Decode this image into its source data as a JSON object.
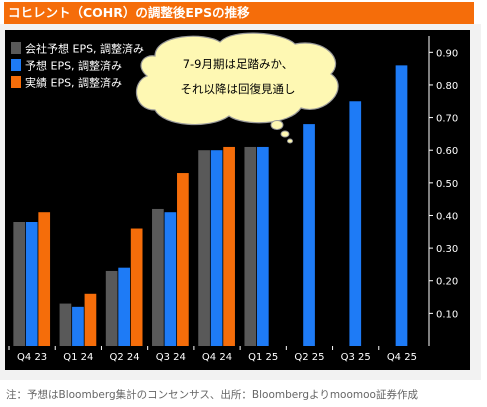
{
  "title": "コヒレント（COHR）の調整後EPSの推移",
  "footnote": "注：予想はBloomberg集計のコンセンサス、出所：Bloombergよりmoomoo証券作成",
  "callout": {
    "line1": "7-9月期は足踏みか、",
    "line2": "それ以降は回復見通し"
  },
  "colors": {
    "company": "#595959",
    "consensus": "#1e7bf6",
    "actual": "#f56d0a",
    "header": "#f56d0a",
    "background": "#000000"
  },
  "chart_data": {
    "type": "bar",
    "title": "コヒレント（COHR）の調整後EPSの推移",
    "categories": [
      "Q4 23",
      "Q1 24",
      "Q2 24",
      "Q3 24",
      "Q4 24",
      "Q1 25",
      "Q2 25",
      "Q3 25",
      "Q4 25"
    ],
    "series": [
      {
        "name": "会社予想 EPS, 調整済み",
        "color": "#595959",
        "values": [
          0.38,
          0.13,
          0.23,
          0.42,
          0.6,
          0.61,
          null,
          null,
          null
        ]
      },
      {
        "name": "予想 EPS, 調整済み",
        "color": "#1e7bf6",
        "values": [
          0.38,
          0.12,
          0.24,
          0.41,
          0.6,
          0.61,
          0.68,
          0.75,
          0.86
        ]
      },
      {
        "name": "実績 EPS, 調整済み",
        "color": "#f56d0a",
        "values": [
          0.41,
          0.16,
          0.36,
          0.53,
          0.61,
          null,
          null,
          null,
          null
        ]
      }
    ],
    "ylim": [
      0,
      0.95
    ],
    "yticks": [
      "0.10",
      "0.20",
      "0.30",
      "0.40",
      "0.50",
      "0.60",
      "0.70",
      "0.80",
      "0.90"
    ],
    "y_axis_side": "right",
    "legend_placement": "top-left",
    "grid": false,
    "xlabel": "",
    "ylabel": ""
  }
}
